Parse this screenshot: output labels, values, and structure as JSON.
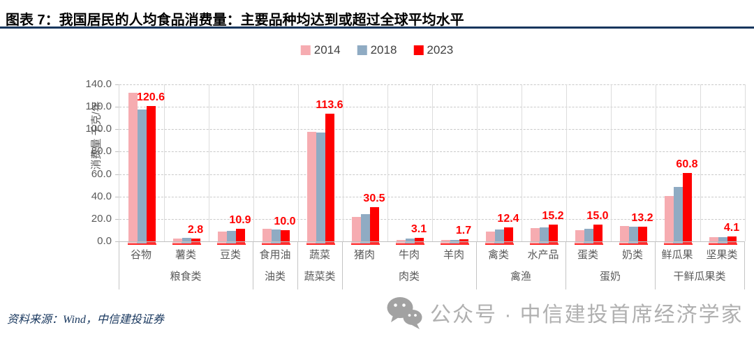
{
  "header": {
    "title": "图表 7：我国居民的人均食品消费量：主要品种均达到或超过全球平均水平"
  },
  "footer": {
    "source": "资料来源：Wind，中信建投证券",
    "watermark": "公众号 · 中信建投首席经济学家",
    "watermark_icon": "wechat-icon"
  },
  "colors": {
    "divider": "#17365D",
    "series_2014": "#F6ACB1",
    "series_2018": "#8FABC3",
    "series_2023": "#FF0000",
    "data_label": "#FF0000",
    "axis_text": "#595959",
    "grid": "#C9C9C9",
    "watermark": "#B0B0B0"
  },
  "chart_data": {
    "type": "bar",
    "title": "",
    "ylabel": "消费量 千克/年",
    "xlabel": "",
    "ylim": [
      0,
      140
    ],
    "ytick_step": 20,
    "yticks": [
      "140.0",
      "120.0",
      "100.0",
      "80.0",
      "60.0",
      "40.0",
      "20.0",
      "0.0"
    ],
    "grid": true,
    "legend_position": "top-center",
    "categories": [
      "谷物",
      "薯类",
      "豆类",
      "食用油",
      "蔬菜",
      "猪肉",
      "牛肉",
      "羊肉",
      "禽类",
      "水产品",
      "蛋类",
      "奶类",
      "鲜瓜果",
      "坚果类"
    ],
    "groups": [
      {
        "label": "粮食类",
        "span": 3
      },
      {
        "label": "油类",
        "span": 1
      },
      {
        "label": "蔬菜类",
        "span": 1
      },
      {
        "label": "肉类",
        "span": 3
      },
      {
        "label": "禽渔",
        "span": 2
      },
      {
        "label": "蛋奶",
        "span": 2
      },
      {
        "label": "干鲜瓜果类",
        "span": 2
      }
    ],
    "series": [
      {
        "name": "2014",
        "color": "#F6ACB1",
        "values": [
          132.5,
          2.4,
          8.5,
          11.2,
          97.7,
          21.5,
          1.5,
          1.2,
          9.0,
          11.8,
          9.8,
          13.4,
          40.2,
          3.5
        ]
      },
      {
        "name": "2018",
        "color": "#8FABC3",
        "values": [
          117.5,
          3.2,
          9.6,
          10.3,
          97.2,
          24.0,
          2.2,
          1.5,
          10.4,
          12.6,
          11.0,
          12.9,
          48.6,
          3.8
        ]
      },
      {
        "name": "2023",
        "color": "#FF0000",
        "values": [
          120.6,
          2.8,
          10.9,
          10.0,
          113.6,
          30.5,
          3.1,
          1.7,
          12.4,
          15.2,
          15.0,
          13.2,
          60.8,
          4.1
        ],
        "labels": [
          "120.6",
          "2.8",
          "10.9",
          "10.0",
          "113.6",
          "30.5",
          "3.1",
          "1.7",
          "12.4",
          "15.2",
          "15.0",
          "13.2",
          "60.8",
          "4.1"
        ]
      }
    ]
  }
}
